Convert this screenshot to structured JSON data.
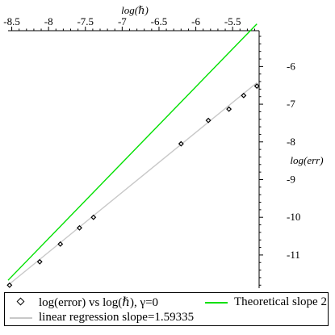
{
  "chart_data": {
    "type": "scatter",
    "xlabel": "log(ℏ)",
    "ylabel": "log(err)",
    "x_ticks": [
      -8.5,
      -8,
      -7.5,
      -7,
      -6.5,
      -6,
      -5.5
    ],
    "x_tick_labels": [
      "-8.5",
      "-8",
      "-7.5",
      "-7",
      "-6.5",
      "-6",
      "-5.5"
    ],
    "y_ticks": [
      -6,
      -7,
      -8,
      -9,
      -10,
      -11
    ],
    "y_tick_labels": [
      "-6",
      "-7",
      "-8",
      "-9",
      "-10",
      "-11"
    ],
    "xlim": [
      -8.55,
      -5.14
    ],
    "ylim": [
      -11.88,
      -5.05
    ],
    "grid": false,
    "legend_position": "bottom",
    "series": [
      {
        "name": "log(error) vs log(ℏ), γ=0",
        "kind": "points",
        "color": "#000000",
        "x": [
          -8.53,
          -8.12,
          -7.84,
          -7.58,
          -7.39,
          -6.2,
          -5.83,
          -5.55,
          -5.35,
          -5.17
        ],
        "y": [
          -11.8,
          -11.18,
          -10.71,
          -10.28,
          -10.0,
          -8.05,
          -7.43,
          -7.13,
          -6.77,
          -6.52
        ]
      },
      {
        "name": "Theoretical slope 2",
        "kind": "line",
        "color": "#00e000",
        "x": [
          -8.55,
          -5.17
        ],
        "y": [
          -11.67,
          -4.87
        ]
      },
      {
        "name": "linear regression slope=1.59335",
        "kind": "line",
        "color": "#c8c8c8",
        "x": [
          -8.55,
          -5.17
        ],
        "y": [
          -11.8,
          -6.43
        ]
      }
    ]
  },
  "legend": {
    "items": [
      {
        "label": "log(error) vs log(ℏ), γ=0"
      },
      {
        "label": "Theoretical slope 2"
      },
      {
        "label": "linear regression slope=1.59335"
      }
    ]
  }
}
